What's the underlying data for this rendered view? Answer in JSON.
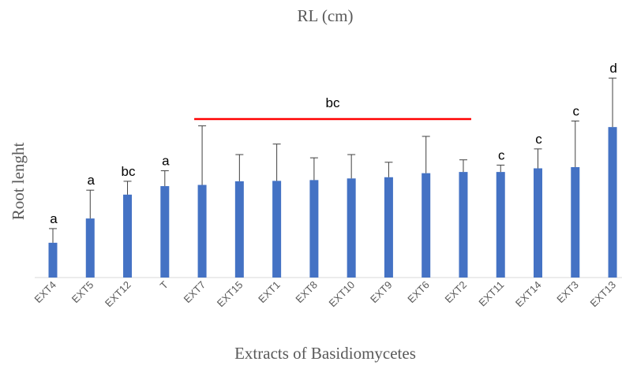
{
  "chart_data": {
    "type": "bar",
    "title": "RL (cm)",
    "xlabel": "Extracts of Basidiomycetes",
    "ylabel": "Root lenght",
    "categories": [
      "EXT4",
      "EXT5",
      "EXT12",
      "T",
      "EXT7",
      "EXT15",
      "EXT1",
      "EXT8",
      "EXT10",
      "EXT9",
      "EXT6",
      "EXT2",
      "EXT11",
      "EXT14",
      "EXT3",
      "EXT13"
    ],
    "values": [
      0.86,
      1.46,
      2.05,
      2.26,
      2.29,
      2.38,
      2.39,
      2.41,
      2.45,
      2.48,
      2.58,
      2.61,
      2.61,
      2.7,
      2.73,
      3.72
    ],
    "errors": [
      0.35,
      0.7,
      0.33,
      0.38,
      1.46,
      0.66,
      0.91,
      0.55,
      0.59,
      0.37,
      0.91,
      0.3,
      0.17,
      0.48,
      1.14,
      1.21
    ],
    "significance_letters": [
      "a",
      "a",
      "bc",
      "a",
      "",
      "",
      "",
      "",
      "",
      "",
      "",
      "",
      "c",
      "c",
      "c",
      "d"
    ],
    "group_annotation": {
      "label": "bc",
      "from": "EXT7",
      "to": "EXT2",
      "color": "#ff0000"
    },
    "ylim": [
      0,
      5
    ],
    "grid": false,
    "legend": "none",
    "bar_color": "#4472c4",
    "error_bar_color": "#404040"
  }
}
